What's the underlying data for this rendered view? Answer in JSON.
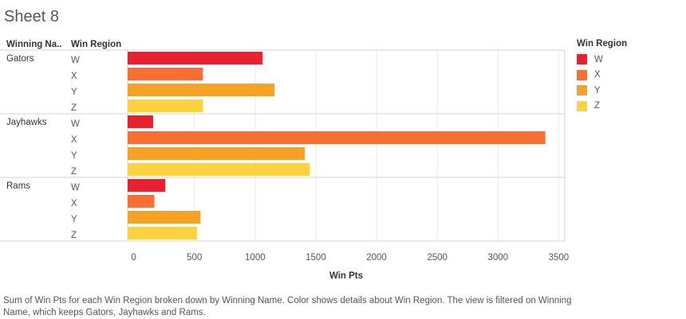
{
  "sheet": {
    "title": "Sheet 8"
  },
  "headers": {
    "name": "Winning Na..",
    "region": "Win Region"
  },
  "legend": {
    "title": "Win Region",
    "items": [
      {
        "label": "W",
        "color": "#e8202f"
      },
      {
        "label": "X",
        "color": "#fb6e32"
      },
      {
        "label": "Y",
        "color": "#f6a325"
      },
      {
        "label": "Z",
        "color": "#fcd23f"
      }
    ]
  },
  "caption": "Sum of Win Pts for each Win Region broken down by Winning Name.  Color shows details about Win Region. The view is filtered on Winning Name, which keeps Gators, Jayhawks and Rams.",
  "chart_data": {
    "type": "bar",
    "orientation": "horizontal",
    "title": "Sheet 8",
    "xlabel": "Win Pts",
    "xlim": [
      -50,
      3550
    ],
    "xticks": [
      0,
      500,
      1000,
      1500,
      2000,
      2500,
      3000,
      3500
    ],
    "grid": true,
    "legend_position": "right",
    "groups": [
      {
        "name": "Gators",
        "regions": [
          "W",
          "X",
          "Y",
          "Z"
        ],
        "values": [
          1060,
          570,
          1160,
          570
        ]
      },
      {
        "name": "Jayhawks",
        "regions": [
          "W",
          "X",
          "Y",
          "Z"
        ],
        "values": [
          160,
          3390,
          1410,
          1450
        ]
      },
      {
        "name": "Rams",
        "regions": [
          "W",
          "X",
          "Y",
          "Z"
        ],
        "values": [
          260,
          170,
          550,
          520
        ]
      }
    ]
  }
}
